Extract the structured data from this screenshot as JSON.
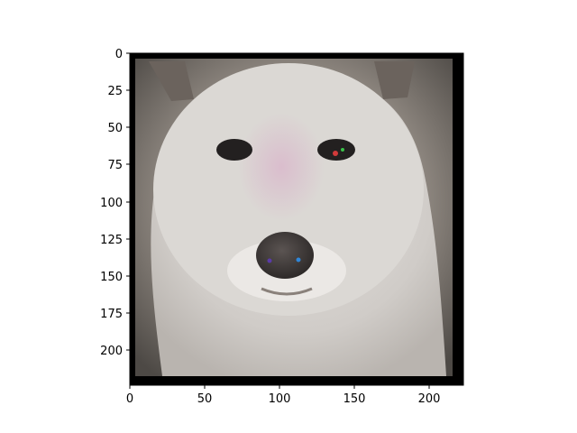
{
  "figure": {
    "image_subject": "white dog face with overlaid saliency noise around the forehead and muzzle",
    "image_extent": {
      "x": [
        0,
        224
      ],
      "y": [
        224,
        0
      ]
    },
    "x_axis": {
      "ticks": [
        0,
        50,
        100,
        150,
        200
      ],
      "labels": [
        "0",
        "50",
        "100",
        "150",
        "200"
      ]
    },
    "y_axis": {
      "ticks": [
        0,
        25,
        50,
        75,
        100,
        125,
        150,
        175,
        200
      ],
      "labels": [
        "0",
        "25",
        "50",
        "75",
        "100",
        "125",
        "150",
        "175",
        "200"
      ]
    },
    "colors": {
      "frame_black": "#000000",
      "fur_light": "#dcd9d6",
      "fur_mid": "#c4c0bc",
      "background_dark": "#4d4945",
      "nose": "#2e2a29",
      "eyes": "#232020",
      "saliency_tint": "#d9a7c7"
    }
  }
}
